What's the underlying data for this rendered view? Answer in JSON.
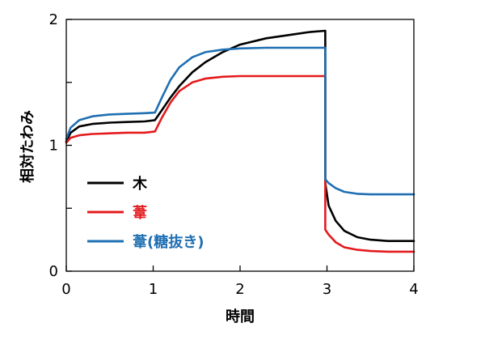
{
  "chart_data": {
    "type": "line",
    "title": "",
    "xlabel": "時間",
    "ylabel": "相対たわみ",
    "xlim": [
      0,
      4
    ],
    "ylim": [
      0,
      2
    ],
    "xticks": [
      0,
      1,
      2,
      3,
      4
    ],
    "xtick_labels": [
      "0",
      "1",
      "2",
      "3",
      "4"
    ],
    "yticks": [
      0,
      0.5,
      1,
      1.5,
      2
    ],
    "ytick_labels": [
      "0",
      "",
      "1",
      "",
      "2"
    ],
    "grid": false,
    "legend_position": "lower-left",
    "series": [
      {
        "name": "木",
        "color": "#000000",
        "x": [
          0,
          0.05,
          0.15,
          0.3,
          0.5,
          0.7,
          0.9,
          1.02,
          1.1,
          1.2,
          1.3,
          1.45,
          1.6,
          1.8,
          2.0,
          2.3,
          2.6,
          2.8,
          2.98,
          2.98,
          3.02,
          3.1,
          3.2,
          3.35,
          3.5,
          3.7,
          3.9,
          4.0
        ],
        "values": [
          1.03,
          1.1,
          1.15,
          1.17,
          1.18,
          1.185,
          1.19,
          1.2,
          1.28,
          1.38,
          1.47,
          1.58,
          1.66,
          1.74,
          1.8,
          1.85,
          1.88,
          1.9,
          1.91,
          0.7,
          0.52,
          0.4,
          0.32,
          0.27,
          0.25,
          0.24,
          0.24,
          0.24
        ]
      },
      {
        "name": "葦",
        "color": "#e41a1c",
        "x": [
          0,
          0.05,
          0.15,
          0.3,
          0.5,
          0.7,
          0.9,
          1.02,
          1.1,
          1.2,
          1.3,
          1.45,
          1.6,
          1.8,
          2.0,
          2.3,
          2.6,
          2.8,
          2.98,
          2.98,
          3.02,
          3.1,
          3.2,
          3.35,
          3.5,
          3.7,
          3.9,
          4.0
        ],
        "values": [
          1.02,
          1.06,
          1.08,
          1.09,
          1.095,
          1.1,
          1.1,
          1.11,
          1.22,
          1.34,
          1.43,
          1.5,
          1.53,
          1.545,
          1.55,
          1.55,
          1.55,
          1.55,
          1.55,
          0.33,
          0.29,
          0.23,
          0.19,
          0.17,
          0.16,
          0.155,
          0.155,
          0.155
        ]
      },
      {
        "name": "葦(糖抜き)",
        "color": "#1f6fb2",
        "x": [
          0,
          0.05,
          0.15,
          0.3,
          0.5,
          0.7,
          0.9,
          1.02,
          1.1,
          1.2,
          1.3,
          1.45,
          1.6,
          1.8,
          2.0,
          2.3,
          2.6,
          2.8,
          2.98,
          2.98,
          3.02,
          3.1,
          3.2,
          3.35,
          3.5,
          3.7,
          3.9,
          4.0
        ],
        "values": [
          1.05,
          1.14,
          1.2,
          1.23,
          1.245,
          1.25,
          1.255,
          1.26,
          1.38,
          1.52,
          1.62,
          1.7,
          1.74,
          1.76,
          1.77,
          1.775,
          1.775,
          1.775,
          1.775,
          0.73,
          0.7,
          0.66,
          0.63,
          0.615,
          0.61,
          0.61,
          0.61,
          0.61
        ]
      }
    ]
  }
}
